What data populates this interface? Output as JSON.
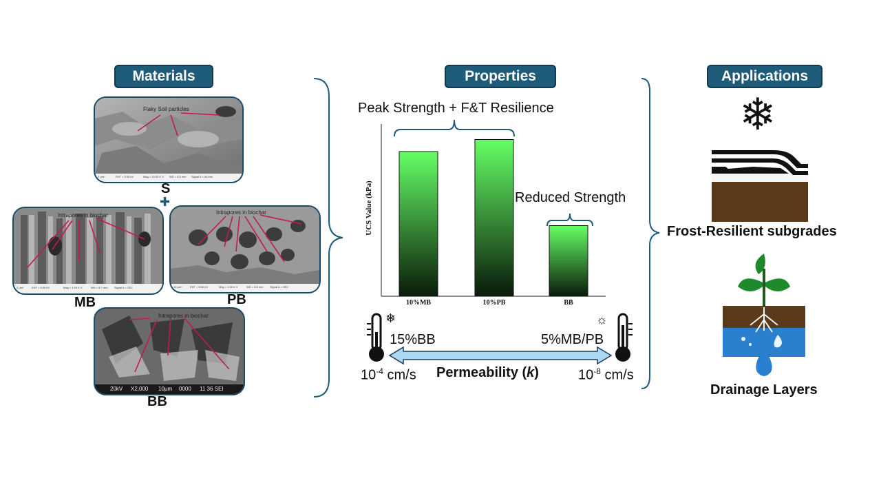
{
  "headers": {
    "materials": "Materials",
    "properties": "Properties",
    "applications": "Applications"
  },
  "materials": {
    "s": {
      "label": "S",
      "annotation": "Flaky Soil particles",
      "footer": [
        "2 µm*",
        "EHT = 5.00 kV",
        "Mag = 10.00 K X",
        "WD = 8.5 mm",
        "Signal A = InLens"
      ]
    },
    "plus": "✚",
    "mb": {
      "label": "MB",
      "annotation": "Intrapores in biochar",
      "footer": [
        "2 µm*",
        "EHT = 5.00 kV",
        "Mag = 1.00 K X",
        "WD = 8.7 mm",
        "Signal A = SE2"
      ]
    },
    "pb": {
      "label": "PB",
      "annotation": "Intrapores in biochar",
      "footer": [
        "10 µm*",
        "EHT = 5.00 kV",
        "Mag = 1.00 K X",
        "WD = 8.6 mm",
        "Signal A = SE2"
      ]
    },
    "bb": {
      "label": "BB",
      "annotation": "Intrapores in biochar",
      "footer": [
        "20kV",
        "X2,000",
        "10µm",
        "0000",
        "11 36 SEI"
      ]
    }
  },
  "chart_data": {
    "type": "bar",
    "categories": [
      "10%MB",
      "10%PB",
      "BB"
    ],
    "values": [
      0.84,
      0.91,
      0.41
    ],
    "ylabel": "UCS Value (kPa)",
    "annotations": [
      "Peak Strength + F&T Resilience",
      "Reduced Strength"
    ],
    "colors": {
      "top": "#66ff66",
      "bottom": "#0a1a0a"
    }
  },
  "permeability": {
    "left_label": "15%BB",
    "right_label": "5%MB/PB",
    "left_value_base": "10",
    "left_value_exp": "-4",
    "left_value_unit": " cm/s",
    "right_value_base": "10",
    "right_value_exp": "-8",
    "right_value_unit": " cm/s",
    "title_text": "Permeability (",
    "title_symbol": "k",
    "title_close": ")",
    "left_icon": "snowflake-icon",
    "right_icon": "sun-icon",
    "arrow_color": "#a9d8f0"
  },
  "applications": {
    "frost": "Frost-Resilient subgrades",
    "drainage": "Drainage Layers"
  }
}
